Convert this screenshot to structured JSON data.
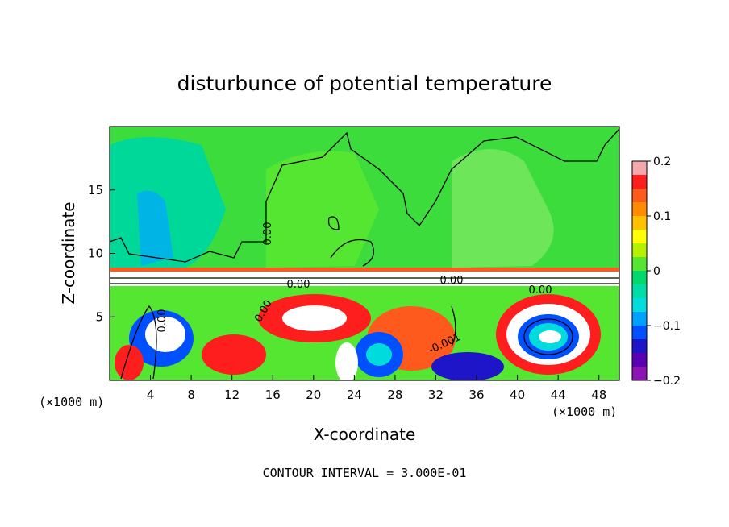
{
  "chart_data": {
    "type": "heatmap",
    "title": "disturbunce of potential temperature",
    "xlabel": "X-coordinate",
    "ylabel": "Z-coordinate",
    "x_unit": "(×1000 m)",
    "x_unit_right": "(×1000 m)",
    "xlim": [
      0,
      50
    ],
    "ylim": [
      0,
      20
    ],
    "x_ticks": [
      4,
      8,
      12,
      16,
      20,
      24,
      28,
      32,
      36,
      40,
      44,
      48
    ],
    "y_ticks": [
      5,
      10,
      15
    ],
    "colorbar": {
      "range": [
        -0.2,
        0.2
      ],
      "tick_labels": [
        "0.2",
        "0.1",
        "0",
        "−0.1",
        "−0.2"
      ],
      "tick_values": [
        0.2,
        0.1,
        0,
        -0.1,
        -0.2
      ],
      "colors": [
        "#f4a8ad",
        "#ff1e1e",
        "#ff5a1e",
        "#ff8c00",
        "#ffc000",
        "#ffff00",
        "#b4f000",
        "#55e632",
        "#00d86e",
        "#00dca8",
        "#00dcdc",
        "#00a0ff",
        "#0050ff",
        "#1e14c8",
        "#5a00b4",
        "#8c14b4"
      ]
    },
    "contour_labels": [
      "0.00",
      "0.00",
      "0.00",
      "0.00",
      "0.00",
      "0.00",
      "-0.001"
    ],
    "footer": "CONTOUR INTERVAL = 3.000E-01",
    "grid": false
  },
  "colors": {
    "background": "#ffffff",
    "upper_field": "#3cdc3c",
    "upper_field_light": "#6ee65a",
    "upper_field_cyan": "#00d89a"
  }
}
